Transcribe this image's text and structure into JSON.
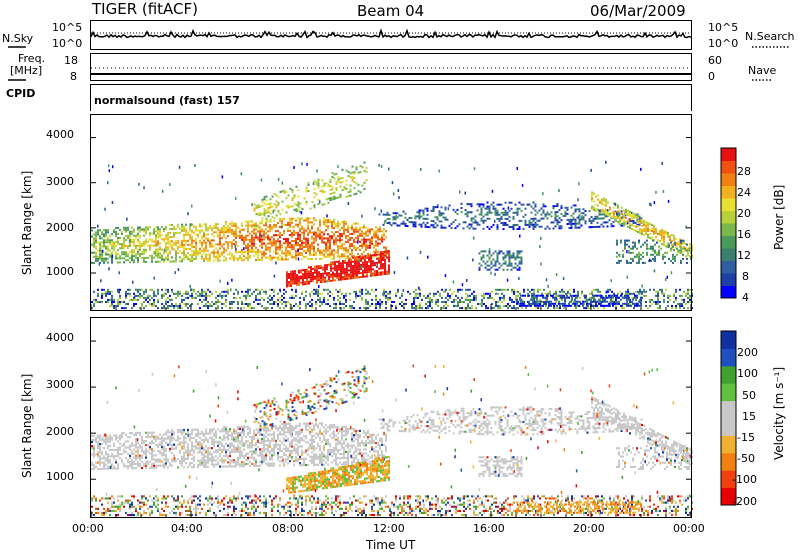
{
  "header": {
    "station": "TIGER (fitACF)",
    "beam": "Beam 04",
    "date": "06/Mar/2009"
  },
  "noise_panel": {
    "left_label": "N.Sky",
    "right_label": "N.Search",
    "left_ticks": [
      "10^5",
      "10^0"
    ],
    "right_ticks": [
      "10^5",
      "10^0"
    ]
  },
  "freq_panel": {
    "left_label_line1": "Freq.",
    "left_label_line2": "[MHz]",
    "left_ticks": [
      "18",
      "8"
    ],
    "right_label": "Nave",
    "right_ticks": [
      "60",
      "0"
    ]
  },
  "cpid_panel": {
    "label": "CPID",
    "value": "normalsound (fast) 157"
  },
  "chart_data": [
    {
      "type": "heatmap",
      "title": "",
      "xlabel": "",
      "ylabel": "Slant Range [km]",
      "xlim": [
        "00:00",
        "24:00"
      ],
      "ylim": [
        180,
        4500
      ],
      "y_ticks": [
        "4000",
        "3000",
        "2000",
        "1000"
      ],
      "colorbar": {
        "label": "Power [dB]",
        "ticks": [
          "28",
          "24",
          "20",
          "16",
          "12",
          "8",
          "4"
        ],
        "range": [
          0,
          30
        ],
        "colors": [
          "#0000ff",
          "#1f3fa8",
          "#2f5fa0",
          "#3a7f70",
          "#4a9a5a",
          "#7ab84a",
          "#b8d13a",
          "#e8e030",
          "#f0b020",
          "#f08010",
          "#f05010",
          "#e81010"
        ]
      }
    },
    {
      "type": "heatmap",
      "title": "",
      "xlabel": "Time UT",
      "ylabel": "Slant Range [km]",
      "xlim": [
        "00:00",
        "24:00"
      ],
      "ylim": [
        180,
        4500
      ],
      "y_ticks": [
        "4000",
        "3000",
        "2000",
        "1000"
      ],
      "x_ticks": [
        "00:00",
        "04:00",
        "08:00",
        "12:00",
        "16:00",
        "20:00",
        "00:00"
      ],
      "colorbar": {
        "label": "Velocity [m s⁻¹]",
        "ticks": [
          "200",
          "100",
          "50",
          "15",
          "-15",
          "-50",
          "-100",
          "-200"
        ],
        "range": [
          -250,
          250
        ],
        "colors": [
          "#e80000",
          "#f04010",
          "#f08010",
          "#f0b030",
          "#c8c8c8",
          "#c8c8c8",
          "#60c040",
          "#40a030",
          "#2050c0",
          "#1030a0"
        ]
      }
    }
  ]
}
